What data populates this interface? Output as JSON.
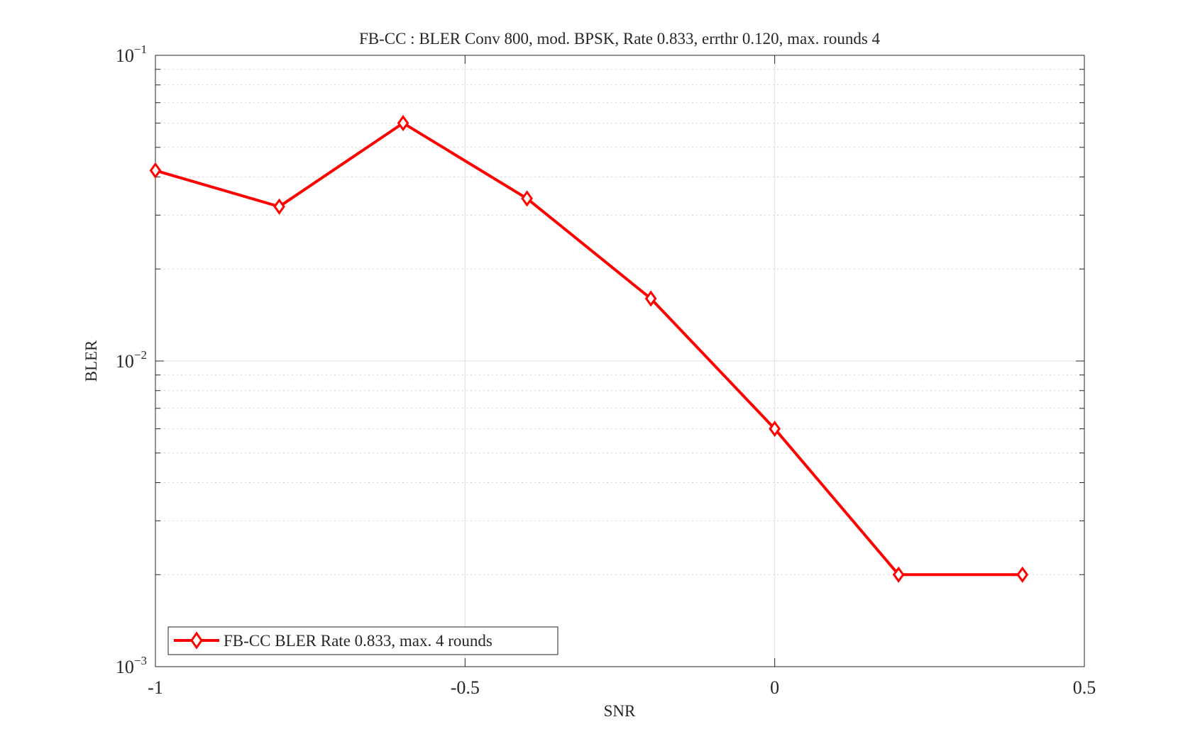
{
  "chart_data": {
    "type": "line",
    "title": "FB-CC : BLER Conv 800, mod. BPSK, Rate 0.833, errthr 0.120, max. rounds 4",
    "xlabel": "SNR",
    "ylabel": "BLER",
    "xlim": [
      -1,
      0.5
    ],
    "ylim": [
      0.001,
      0.1
    ],
    "yscale": "log",
    "xticks": [
      -1,
      -0.5,
      0,
      0.5
    ],
    "xtick_labels": [
      "-1",
      "-0.5",
      "0",
      "0.5"
    ],
    "yticks": [
      0.001,
      0.01,
      0.1
    ],
    "ytick_labels": [
      {
        "base": "10",
        "exp": "−3"
      },
      {
        "base": "10",
        "exp": "−2"
      },
      {
        "base": "10",
        "exp": "−1"
      }
    ],
    "grid": true,
    "legend_position": "bottom-left",
    "series": [
      {
        "name": "FB-CC BLER Rate 0.833, max. 4 rounds",
        "color": "#ff0000",
        "marker": "diamond",
        "x": [
          -1,
          -0.8,
          -0.6,
          -0.4,
          -0.2,
          0,
          0.2,
          0.4
        ],
        "y": [
          0.042,
          0.032,
          0.06,
          0.034,
          0.016,
          0.006,
          0.002,
          0.002
        ]
      }
    ]
  }
}
